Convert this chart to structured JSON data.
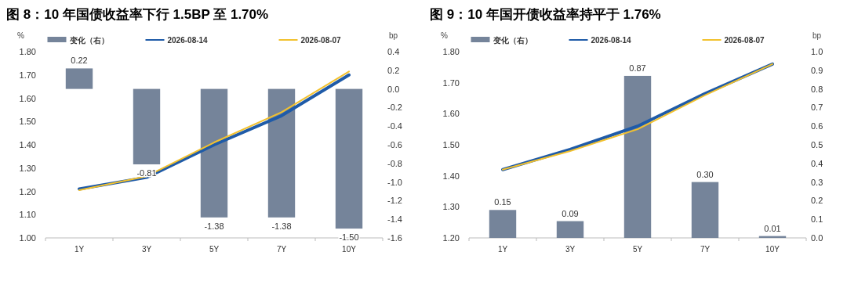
{
  "chart_data": [
    {
      "type": "bar",
      "title": "图 8：10 年国债收益率下行 1.5BP 至 1.70%",
      "ylabel": "%",
      "y2label": "bp",
      "categories": [
        "1Y",
        "3Y",
        "5Y",
        "7Y",
        "10Y"
      ],
      "series": [
        {
          "name": "变化（右）",
          "axis": "y2",
          "color": "#75849a",
          "values": [
            0.22,
            -0.81,
            -1.38,
            -1.38,
            -1.5
          ],
          "value_labels": [
            "0.22",
            "-0.81",
            "-1.38",
            "-1.38",
            "-1.50"
          ]
        },
        {
          "name": "2026-08-14",
          "type": "line",
          "color": "#1f5ba8",
          "values": [
            1.21,
            1.26,
            1.4,
            1.525,
            1.7
          ]
        },
        {
          "name": "2026-08-07",
          "type": "line",
          "color": "#f2c12e",
          "values": [
            1.205,
            1.265,
            1.41,
            1.54,
            1.715
          ]
        }
      ],
      "ylim": [
        1.0,
        1.8
      ],
      "yticks": [
        {
          "value": 1.0,
          "label": "1.00"
        },
        {
          "value": 1.1,
          "label": "1.10"
        },
        {
          "value": 1.2,
          "label": "1.20"
        },
        {
          "value": 1.3,
          "label": "1.30"
        },
        {
          "value": 1.4,
          "label": "1.40"
        },
        {
          "value": 1.5,
          "label": "1.50"
        },
        {
          "value": 1.6,
          "label": "1.60"
        },
        {
          "value": 1.7,
          "label": "1.70"
        },
        {
          "value": 1.8,
          "label": "1.80"
        }
      ],
      "y2lim": [
        -1.6,
        0.4
      ],
      "y2ticks": [
        -1.6,
        -1.4,
        -1.2,
        {
          "value": -1.0,
          "label": "-1.0"
        },
        -0.8,
        -0.6,
        -0.4,
        -0.2,
        {
          "value": 0,
          "label": "0.0"
        },
        0.2,
        0.4
      ],
      "legend": "top",
      "grid": false
    },
    {
      "type": "bar",
      "title": "图 9：10 年国开债收益率持平于 1.76%",
      "ylabel": "%",
      "y2label": "bp",
      "categories": [
        "1Y",
        "3Y",
        "5Y",
        "7Y",
        "10Y"
      ],
      "series": [
        {
          "name": "变化（右）",
          "axis": "y2",
          "color": "#75849a",
          "values": [
            0.15,
            0.09,
            0.87,
            0.3,
            0.01
          ],
          "value_labels": [
            "0.15",
            "0.09",
            "0.87",
            "0.30",
            "0.01"
          ]
        },
        {
          "name": "2026-08-14",
          "type": "line",
          "color": "#1f5ba8",
          "values": [
            1.42,
            1.485,
            1.56,
            1.665,
            1.76
          ]
        },
        {
          "name": "2026-08-07",
          "type": "line",
          "color": "#f2c12e",
          "values": [
            1.42,
            1.48,
            1.55,
            1.66,
            1.76
          ]
        }
      ],
      "ylim": [
        1.2,
        1.8
      ],
      "yticks": [
        {
          "value": 1.2,
          "label": "1.20"
        },
        {
          "value": 1.3,
          "label": "1.30"
        },
        {
          "value": 1.4,
          "label": "1.40"
        },
        {
          "value": 1.5,
          "label": "1.50"
        },
        {
          "value": 1.6,
          "label": "1.60"
        },
        {
          "value": 1.7,
          "label": "1.70"
        },
        {
          "value": 1.8,
          "label": "1.80"
        }
      ],
      "y2lim": [
        0,
        1.0
      ],
      "y2ticks": [
        {
          "value": 0,
          "label": "0.0"
        },
        0.1,
        0.2,
        0.3,
        0.4,
        0.5,
        0.6,
        0.7,
        0.8,
        0.9,
        {
          "value": 1.0,
          "label": "1.0"
        }
      ],
      "legend": "top",
      "grid": false
    }
  ]
}
